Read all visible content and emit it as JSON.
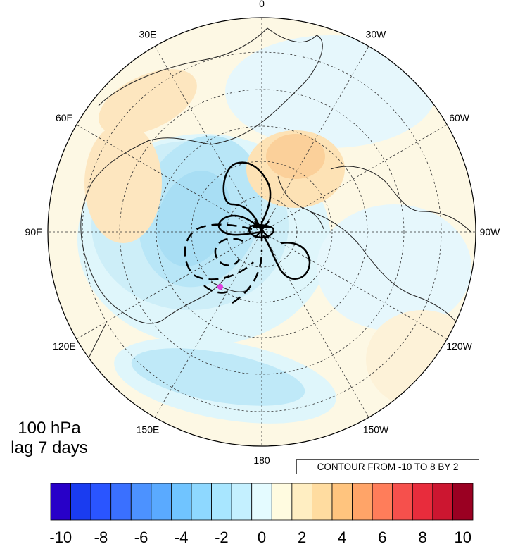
{
  "plot": {
    "projection": "north-polar-stereographic",
    "level_text": "100 hPa",
    "lag_text": "lag 7 days",
    "contour_note": "CONTOUR FROM -10 TO 8 BY 2",
    "marker_color": "#e040e0"
  },
  "longitude_labels": [
    "0",
    "30W",
    "60W",
    "90W",
    "120W",
    "150W",
    "180",
    "150E",
    "120E",
    "90E",
    "60E",
    "30E"
  ],
  "colorbar": {
    "colors": [
      "#2800c8",
      "#1a3cf0",
      "#2a55ff",
      "#3a70ff",
      "#4c92ff",
      "#5aaaff",
      "#70c4ff",
      "#8ed8ff",
      "#a8e6ff",
      "#c4f0ff",
      "#e4fbff",
      "#fffbe0",
      "#ffeec2",
      "#ffdca0",
      "#ffc47e",
      "#ffa468",
      "#ff7d5a",
      "#f6504c",
      "#e82c3c",
      "#cc1630",
      "#9a0022"
    ],
    "tick_labels": [
      "-10",
      "-8",
      "-6",
      "-4",
      "-2",
      "0",
      "2",
      "4",
      "6",
      "8",
      "10"
    ]
  }
}
